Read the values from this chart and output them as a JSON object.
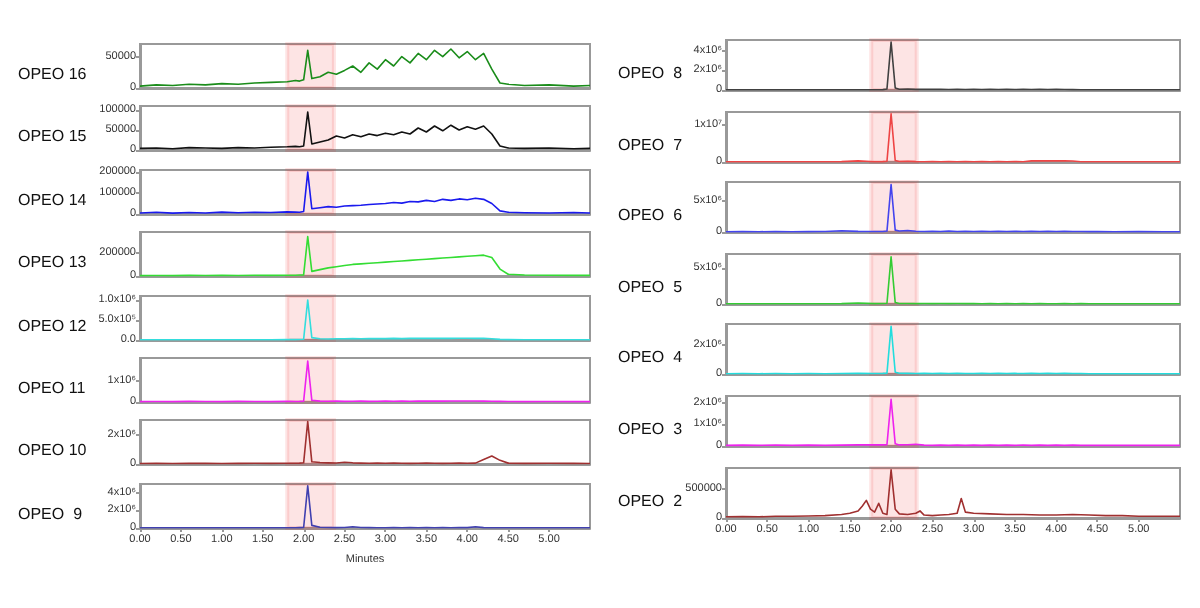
{
  "chart_data": [
    {
      "type": "line",
      "title": "OPEO 16",
      "x": [
        0,
        0.2,
        0.4,
        0.6,
        0.8,
        1.0,
        1.2,
        1.4,
        1.6,
        1.8,
        1.9,
        1.95,
        2.0,
        2.05,
        2.1,
        2.2,
        2.3,
        2.4,
        2.5,
        2.6,
        2.7,
        2.8,
        2.9,
        3.0,
        3.1,
        3.2,
        3.3,
        3.4,
        3.5,
        3.6,
        3.7,
        3.8,
        3.9,
        4.0,
        4.1,
        4.2,
        4.3,
        4.4,
        4.5,
        4.7,
        5.0,
        5.3,
        5.5
      ],
      "xlim": [
        0,
        5.5
      ],
      "ylim": [
        0,
        70000
      ],
      "yticks": [
        0,
        50000
      ],
      "tick_labels": "y",
      "marker": "none",
      "bands": [
        {
          "axis": "x",
          "from": 1.8,
          "to": 2.37,
          "color": "#ee2222"
        }
      ],
      "series": [
        {
          "color": "#1a8c1a",
          "values": [
            3000,
            5000,
            4000,
            6000,
            5000,
            7000,
            6000,
            8000,
            9000,
            10000,
            12000,
            11000,
            13000,
            60000,
            15000,
            18000,
            25000,
            22000,
            28000,
            35000,
            25000,
            40000,
            30000,
            45000,
            35000,
            50000,
            40000,
            55000,
            45000,
            60000,
            50000,
            62000,
            48000,
            58000,
            45000,
            55000,
            30000,
            8000,
            6000,
            4000,
            5000,
            3000,
            4000
          ]
        }
      ]
    },
    {
      "type": "line",
      "title": "OPEO 15",
      "x": [
        0,
        0.2,
        0.4,
        0.6,
        0.8,
        1.0,
        1.2,
        1.4,
        1.6,
        1.8,
        1.9,
        1.95,
        2.0,
        2.05,
        2.1,
        2.2,
        2.3,
        2.4,
        2.5,
        2.6,
        2.7,
        2.8,
        2.9,
        3.0,
        3.1,
        3.2,
        3.3,
        3.4,
        3.5,
        3.6,
        3.7,
        3.8,
        3.9,
        4.0,
        4.1,
        4.2,
        4.3,
        4.4,
        4.5,
        4.7,
        5.0,
        5.3,
        5.5
      ],
      "xlim": [
        0,
        5.5
      ],
      "ylim": [
        0,
        110000
      ],
      "yticks": [
        0,
        50000,
        100000
      ],
      "tick_labels": "y",
      "marker": "none",
      "bands": [
        {
          "axis": "x",
          "from": 1.8,
          "to": 2.37,
          "color": "#ee2222"
        }
      ],
      "series": [
        {
          "color": "#111111",
          "values": [
            4000,
            5000,
            3000,
            6000,
            5000,
            4000,
            6000,
            5000,
            7000,
            8000,
            9000,
            8000,
            10000,
            95000,
            15000,
            20000,
            25000,
            35000,
            30000,
            38000,
            33000,
            40000,
            36000,
            42000,
            38000,
            45000,
            40000,
            55000,
            45000,
            60000,
            48000,
            62000,
            50000,
            58000,
            52000,
            60000,
            40000,
            10000,
            5000,
            4000,
            5000,
            3000,
            4000
          ]
        }
      ]
    },
    {
      "type": "line",
      "title": "OPEO 14",
      "x": [
        0,
        0.2,
        0.4,
        0.6,
        0.8,
        1.0,
        1.2,
        1.4,
        1.6,
        1.8,
        1.9,
        1.95,
        2.0,
        2.05,
        2.1,
        2.2,
        2.3,
        2.4,
        2.5,
        2.6,
        2.7,
        2.8,
        2.9,
        3.0,
        3.1,
        3.2,
        3.3,
        3.4,
        3.5,
        3.6,
        3.7,
        3.8,
        3.9,
        4.0,
        4.1,
        4.2,
        4.3,
        4.4,
        4.5,
        4.7,
        5.0,
        5.3,
        5.5
      ],
      "xlim": [
        0,
        5.5
      ],
      "ylim": [
        0,
        210000
      ],
      "yticks": [
        0,
        100000,
        200000
      ],
      "tick_labels": "y",
      "marker": "none",
      "bands": [
        {
          "axis": "x",
          "from": 1.8,
          "to": 2.37,
          "color": "#ee2222"
        }
      ],
      "series": [
        {
          "color": "#1a1aee",
          "values": [
            5000,
            8000,
            4000,
            7000,
            5000,
            9000,
            6000,
            8000,
            7000,
            10000,
            9000,
            8000,
            12000,
            200000,
            25000,
            30000,
            35000,
            32000,
            38000,
            40000,
            42000,
            45000,
            48000,
            50000,
            55000,
            52000,
            60000,
            58000,
            65000,
            60000,
            70000,
            65000,
            72000,
            68000,
            75000,
            70000,
            50000,
            15000,
            8000,
            6000,
            5000,
            7000,
            5000
          ]
        }
      ]
    },
    {
      "type": "line",
      "title": "OPEO 13",
      "x": [
        0,
        0.2,
        0.4,
        0.6,
        0.8,
        1.0,
        1.2,
        1.4,
        1.6,
        1.8,
        1.9,
        1.95,
        2.0,
        2.05,
        2.1,
        2.2,
        2.3,
        2.4,
        2.5,
        2.6,
        2.7,
        2.8,
        2.9,
        3.0,
        3.1,
        3.2,
        3.3,
        3.4,
        3.5,
        3.6,
        3.7,
        3.8,
        3.9,
        4.0,
        4.1,
        4.2,
        4.3,
        4.4,
        4.5,
        4.7,
        5.0,
        5.3,
        5.5
      ],
      "xlim": [
        0,
        5.5
      ],
      "ylim": [
        0,
        380000
      ],
      "yticks": [
        0,
        200000
      ],
      "tick_labels": "y",
      "marker": "none",
      "bands": [
        {
          "axis": "x",
          "from": 1.8,
          "to": 2.37,
          "color": "#ee2222"
        }
      ],
      "series": [
        {
          "color": "#33dd33",
          "values": [
            3000,
            4000,
            3000,
            5000,
            4000,
            5000,
            4000,
            6000,
            5000,
            7000,
            6000,
            8000,
            10000,
            340000,
            40000,
            55000,
            70000,
            80000,
            90000,
            100000,
            105000,
            110000,
            115000,
            120000,
            125000,
            130000,
            135000,
            140000,
            145000,
            150000,
            155000,
            160000,
            165000,
            170000,
            175000,
            180000,
            160000,
            60000,
            15000,
            8000,
            6000,
            5000,
            5000
          ]
        }
      ]
    },
    {
      "type": "line",
      "title": "OPEO 12",
      "x": [
        0,
        0.2,
        0.4,
        0.6,
        0.8,
        1.0,
        1.2,
        1.4,
        1.6,
        1.8,
        1.9,
        1.95,
        2.0,
        2.05,
        2.1,
        2.2,
        2.3,
        2.4,
        2.5,
        2.6,
        2.7,
        2.8,
        2.9,
        3.0,
        3.1,
        3.2,
        3.3,
        3.4,
        3.5,
        3.6,
        3.7,
        3.8,
        3.9,
        4.0,
        4.1,
        4.2,
        4.3,
        4.4,
        4.5,
        4.7,
        5.0,
        5.3,
        5.5
      ],
      "xlim": [
        0,
        5.5
      ],
      "ylim": [
        0,
        1100000
      ],
      "yticks": [
        {
          "value": 0,
          "label": "0.0"
        },
        {
          "value": 500000,
          "label": "5.0x10⁵"
        },
        {
          "value": 1000000,
          "label": "1.0x10⁶"
        }
      ],
      "tick_labels": "y",
      "marker": "none",
      "bands": [
        {
          "axis": "x",
          "from": 1.8,
          "to": 2.37,
          "color": "#ee2222"
        }
      ],
      "series": [
        {
          "color": "#33dddd",
          "values": [
            5000,
            6000,
            5000,
            7000,
            6000,
            5000,
            7000,
            6000,
            8000,
            9000,
            10000,
            12000,
            20000,
            1000000,
            60000,
            30000,
            25000,
            30000,
            30000,
            35000,
            30000,
            35000,
            35000,
            35000,
            40000,
            35000,
            40000,
            40000,
            45000,
            40000,
            45000,
            40000,
            45000,
            45000,
            40000,
            45000,
            30000,
            15000,
            10000,
            8000,
            7000,
            6000,
            5000
          ]
        }
      ]
    },
    {
      "type": "line",
      "title": "OPEO 11",
      "x": [
        0,
        0.2,
        0.4,
        0.6,
        0.8,
        1.0,
        1.2,
        1.4,
        1.6,
        1.8,
        1.9,
        1.95,
        2.0,
        2.05,
        2.1,
        2.2,
        2.3,
        2.4,
        2.5,
        2.6,
        2.7,
        2.8,
        2.9,
        3.0,
        3.1,
        3.2,
        3.3,
        3.4,
        3.5,
        3.6,
        3.7,
        3.8,
        3.9,
        4.0,
        4.1,
        4.2,
        4.3,
        4.4,
        4.5,
        4.7,
        5.0,
        5.3,
        5.5
      ],
      "xlim": [
        0,
        5.5
      ],
      "ylim": [
        0,
        2100000
      ],
      "yticks": [
        0,
        {
          "value": 1000000,
          "label": "1x10⁶"
        }
      ],
      "tick_labels": "y",
      "marker": "none",
      "bands": [
        {
          "axis": "x",
          "from": 1.8,
          "to": 2.37,
          "color": "#ee2222"
        }
      ],
      "series": [
        {
          "color": "#ee22ee",
          "values": [
            20000,
            25000,
            20000,
            30000,
            25000,
            20000,
            30000,
            25000,
            20000,
            30000,
            25000,
            30000,
            40000,
            1950000,
            80000,
            40000,
            35000,
            40000,
            30000,
            35000,
            40000,
            30000,
            35000,
            40000,
            35000,
            40000,
            35000,
            45000,
            40000,
            45000,
            40000,
            50000,
            45000,
            50000,
            45000,
            40000,
            35000,
            30000,
            25000,
            20000,
            25000,
            20000,
            20000
          ]
        }
      ]
    },
    {
      "type": "line",
      "title": "OPEO 10",
      "x": [
        0,
        0.2,
        0.4,
        0.6,
        0.8,
        1.0,
        1.2,
        1.4,
        1.6,
        1.8,
        1.9,
        1.95,
        2.0,
        2.05,
        2.1,
        2.2,
        2.3,
        2.4,
        2.5,
        2.6,
        2.7,
        2.8,
        2.9,
        3.0,
        3.1,
        3.2,
        3.3,
        3.4,
        3.5,
        3.6,
        3.7,
        3.8,
        3.9,
        4.0,
        4.1,
        4.2,
        4.3,
        4.4,
        4.5,
        4.7,
        5.0,
        5.3,
        5.5
      ],
      "xlim": [
        0,
        5.5
      ],
      "ylim": [
        0,
        3000000
      ],
      "yticks": [
        0,
        {
          "value": 2000000,
          "label": "2x10⁶"
        }
      ],
      "tick_labels": "y",
      "marker": "none",
      "bands": [
        {
          "axis": "x",
          "from": 1.8,
          "to": 2.37,
          "color": "#ee2222"
        }
      ],
      "series": [
        {
          "color": "#a03030",
          "values": [
            30000,
            40000,
            30000,
            50000,
            40000,
            30000,
            40000,
            50000,
            40000,
            50000,
            50000,
            60000,
            80000,
            2900000,
            150000,
            100000,
            80000,
            70000,
            120000,
            80000,
            60000,
            50000,
            60000,
            50000,
            60000,
            50000,
            40000,
            50000,
            60000,
            50000,
            40000,
            50000,
            60000,
            50000,
            60000,
            300000,
            550000,
            250000,
            60000,
            40000,
            50000,
            40000,
            30000
          ]
        }
      ]
    },
    {
      "type": "line",
      "title": "OPEO  9",
      "x": [
        0,
        0.2,
        0.4,
        0.6,
        0.8,
        1.0,
        1.2,
        1.4,
        1.6,
        1.8,
        1.9,
        1.95,
        2.0,
        2.05,
        2.1,
        2.2,
        2.3,
        2.4,
        2.5,
        2.6,
        2.7,
        2.8,
        2.9,
        3.0,
        3.1,
        3.2,
        3.3,
        3.4,
        3.5,
        3.6,
        3.7,
        3.8,
        3.9,
        4.0,
        4.1,
        4.2,
        4.3,
        4.4,
        4.5,
        4.7,
        5.0,
        5.3,
        5.5
      ],
      "xlim": [
        0,
        5.5
      ],
      "xlabel": "Minutes",
      "ylim": [
        0,
        5000000
      ],
      "yticks": [
        0,
        {
          "value": 2000000,
          "label": "2x10⁶"
        },
        {
          "value": 4000000,
          "label": "4x10⁶"
        }
      ],
      "xticks": [
        {
          "value": 0,
          "label": "0.00"
        },
        {
          "value": 0.5,
          "label": "0.50"
        },
        {
          "value": 1,
          "label": "1.00"
        },
        {
          "value": 1.5,
          "label": "1.50"
        },
        {
          "value": 2,
          "label": "2.00"
        },
        {
          "value": 2.5,
          "label": "2.50"
        },
        {
          "value": 3,
          "label": "3.00"
        },
        {
          "value": 3.5,
          "label": "3.50"
        },
        {
          "value": 4,
          "label": "4.00"
        },
        {
          "value": 4.5,
          "label": "4.50"
        },
        {
          "value": 5,
          "label": "5.00"
        }
      ],
      "marker": "none",
      "bands": [
        {
          "axis": "x",
          "from": 1.8,
          "to": 2.37,
          "color": "#ee2222"
        }
      ],
      "series": [
        {
          "color": "#4040b0",
          "values": [
            20000,
            30000,
            20000,
            30000,
            20000,
            30000,
            20000,
            30000,
            20000,
            30000,
            30000,
            40000,
            60000,
            4800000,
            300000,
            80000,
            50000,
            40000,
            60000,
            150000,
            50000,
            40000,
            30000,
            30000,
            40000,
            30000,
            40000,
            30000,
            40000,
            30000,
            40000,
            30000,
            40000,
            40000,
            150000,
            40000,
            30000,
            30000,
            20000,
            20000,
            30000,
            20000,
            20000
          ]
        }
      ]
    },
    {
      "type": "line",
      "title": "OPEO  8",
      "x": [
        0,
        0.2,
        0.4,
        0.6,
        0.8,
        1.0,
        1.2,
        1.4,
        1.6,
        1.8,
        1.9,
        1.95,
        2.0,
        2.05,
        2.1,
        2.2,
        2.3,
        2.4,
        2.5,
        2.6,
        2.7,
        2.8,
        2.9,
        3.0,
        3.1,
        3.2,
        3.3,
        3.4,
        3.5,
        3.6,
        3.7,
        3.8,
        3.9,
        4.0,
        4.1,
        4.2,
        4.3,
        4.4,
        4.5,
        4.7,
        5.0,
        5.3,
        5.5
      ],
      "xlim": [
        0,
        5.5
      ],
      "ylim": [
        0,
        5100000
      ],
      "yticks": [
        0,
        {
          "value": 2000000,
          "label": "2x10⁶"
        },
        {
          "value": 4000000,
          "label": "4x10⁶"
        }
      ],
      "tick_labels": "y",
      "marker": "none",
      "bands": [
        {
          "axis": "x",
          "from": 1.76,
          "to": 2.31,
          "color": "#ee2222"
        }
      ],
      "series": [
        {
          "color": "#404040",
          "values": [
            20000,
            20000,
            20000,
            20000,
            20000,
            20000,
            20000,
            20000,
            20000,
            30000,
            40000,
            100000,
            4900000,
            200000,
            80000,
            100000,
            60000,
            80000,
            60000,
            70000,
            50000,
            60000,
            50000,
            60000,
            50000,
            60000,
            50000,
            60000,
            50000,
            60000,
            50000,
            60000,
            50000,
            60000,
            50000,
            40000,
            30000,
            20000,
            20000,
            20000,
            20000,
            20000,
            20000
          ]
        }
      ]
    },
    {
      "type": "line",
      "title": "OPEO  7",
      "x": [
        0,
        0.2,
        0.4,
        0.6,
        0.8,
        1.0,
        1.2,
        1.4,
        1.6,
        1.8,
        1.9,
        1.95,
        2.0,
        2.05,
        2.1,
        2.2,
        2.3,
        2.4,
        2.5,
        2.6,
        2.7,
        2.8,
        2.9,
        3.0,
        3.1,
        3.2,
        3.3,
        3.4,
        3.5,
        3.6,
        3.7,
        3.8,
        3.9,
        4.0,
        4.1,
        4.2,
        4.3,
        4.4,
        4.5,
        4.7,
        5.0,
        5.3,
        5.5
      ],
      "xlim": [
        0,
        5.5
      ],
      "ylim": [
        0,
        13500000
      ],
      "yticks": [
        0,
        {
          "value": 10000000,
          "label": "1x10⁷"
        }
      ],
      "tick_labels": "y",
      "marker": "none",
      "bands": [
        {
          "axis": "x",
          "from": 1.76,
          "to": 2.31,
          "color": "#ee2222"
        }
      ],
      "series": [
        {
          "color": "#ee4444",
          "values": [
            50000,
            60000,
            50000,
            60000,
            50000,
            60000,
            50000,
            100000,
            300000,
            80000,
            100000,
            200000,
            13000000,
            400000,
            150000,
            200000,
            100000,
            80000,
            100000,
            80000,
            100000,
            80000,
            100000,
            80000,
            100000,
            80000,
            100000,
            80000,
            100000,
            80000,
            300000,
            300000,
            350000,
            300000,
            300000,
            250000,
            80000,
            60000,
            50000,
            50000,
            60000,
            50000,
            50000
          ]
        }
      ]
    },
    {
      "type": "line",
      "title": "OPEO  6",
      "x": [
        0,
        0.2,
        0.4,
        0.6,
        0.8,
        1.0,
        1.2,
        1.4,
        1.6,
        1.8,
        1.9,
        1.95,
        2.0,
        2.05,
        2.1,
        2.2,
        2.3,
        2.4,
        2.5,
        2.6,
        2.7,
        2.8,
        2.9,
        3.0,
        3.1,
        3.2,
        3.3,
        3.4,
        3.5,
        3.6,
        3.7,
        3.8,
        3.9,
        4.0,
        4.1,
        4.2,
        4.3,
        4.4,
        4.5,
        4.7,
        5.0,
        5.3,
        5.5
      ],
      "xlim": [
        0,
        5.5
      ],
      "ylim": [
        0,
        8000000
      ],
      "yticks": [
        0,
        {
          "value": 5000000,
          "label": "5x10⁶"
        }
      ],
      "tick_labels": "y",
      "marker": "none",
      "bands": [
        {
          "axis": "x",
          "from": 1.76,
          "to": 2.31,
          "color": "#ee2222"
        }
      ],
      "series": [
        {
          "color": "#4444ee",
          "values": [
            50000,
            60000,
            50000,
            60000,
            50000,
            60000,
            80000,
            200000,
            100000,
            80000,
            80000,
            150000,
            7600000,
            300000,
            150000,
            250000,
            120000,
            80000,
            100000,
            80000,
            150000,
            80000,
            100000,
            80000,
            100000,
            80000,
            100000,
            80000,
            100000,
            80000,
            100000,
            80000,
            100000,
            80000,
            100000,
            80000,
            80000,
            60000,
            60000,
            50000,
            60000,
            50000,
            50000
          ]
        }
      ]
    },
    {
      "type": "line",
      "title": "OPEO  5",
      "x": [
        0,
        0.2,
        0.4,
        0.6,
        0.8,
        1.0,
        1.2,
        1.4,
        1.6,
        1.8,
        1.9,
        1.95,
        2.0,
        2.05,
        2.1,
        2.2,
        2.3,
        2.4,
        2.5,
        2.6,
        2.7,
        2.8,
        2.9,
        3.0,
        3.1,
        3.2,
        3.3,
        3.4,
        3.5,
        3.6,
        3.7,
        3.8,
        3.9,
        4.0,
        4.1,
        4.2,
        4.3,
        4.4,
        4.5,
        4.7,
        5.0,
        5.3,
        5.5
      ],
      "xlim": [
        0,
        5.5
      ],
      "ylim": [
        0,
        7000000
      ],
      "yticks": [
        0,
        {
          "value": 5000000,
          "label": "5x10⁶"
        }
      ],
      "tick_labels": "y",
      "marker": "none",
      "bands": [
        {
          "axis": "x",
          "from": 1.76,
          "to": 2.31,
          "color": "#ee2222"
        }
      ],
      "series": [
        {
          "color": "#33cc33",
          "values": [
            30000,
            40000,
            30000,
            40000,
            30000,
            40000,
            30000,
            50000,
            150000,
            50000,
            60000,
            100000,
            6600000,
            200000,
            80000,
            60000,
            50000,
            60000,
            50000,
            60000,
            50000,
            60000,
            50000,
            50000,
            40000,
            50000,
            40000,
            50000,
            40000,
            50000,
            40000,
            50000,
            40000,
            40000,
            50000,
            40000,
            50000,
            40000,
            30000,
            30000,
            30000,
            30000,
            30000
          ]
        }
      ]
    },
    {
      "type": "line",
      "title": "OPEO  4",
      "x": [
        0,
        0.2,
        0.4,
        0.6,
        0.8,
        1.0,
        1.2,
        1.4,
        1.6,
        1.8,
        1.9,
        1.95,
        2.0,
        2.05,
        2.1,
        2.2,
        2.3,
        2.4,
        2.5,
        2.6,
        2.7,
        2.8,
        2.9,
        3.0,
        3.1,
        3.2,
        3.3,
        3.4,
        3.5,
        3.6,
        3.7,
        3.8,
        3.9,
        4.0,
        4.1,
        4.2,
        4.3,
        4.4,
        4.5,
        4.7,
        5.0,
        5.3,
        5.5
      ],
      "xlim": [
        0,
        5.5
      ],
      "ylim": [
        0,
        3400000
      ],
      "yticks": [
        0,
        {
          "value": 2000000,
          "label": "2x10⁶"
        }
      ],
      "tick_labels": "y",
      "marker": "none",
      "bands": [
        {
          "axis": "x",
          "from": 1.76,
          "to": 2.31,
          "color": "#ee2222"
        }
      ],
      "series": [
        {
          "color": "#22dddd",
          "values": [
            20000,
            30000,
            20000,
            30000,
            20000,
            30000,
            20000,
            30000,
            40000,
            30000,
            40000,
            60000,
            3250000,
            120000,
            50000,
            40000,
            30000,
            40000,
            30000,
            40000,
            30000,
            40000,
            30000,
            30000,
            40000,
            30000,
            40000,
            30000,
            40000,
            30000,
            40000,
            30000,
            40000,
            30000,
            40000,
            30000,
            30000,
            20000,
            20000,
            20000,
            20000,
            20000,
            20000
          ]
        }
      ]
    },
    {
      "type": "line",
      "title": "OPEO  3",
      "x": [
        0,
        0.2,
        0.4,
        0.6,
        0.8,
        1.0,
        1.2,
        1.4,
        1.6,
        1.8,
        1.9,
        1.95,
        2.0,
        2.05,
        2.1,
        2.2,
        2.3,
        2.4,
        2.5,
        2.6,
        2.7,
        2.8,
        2.9,
        3.0,
        3.1,
        3.2,
        3.3,
        3.4,
        3.5,
        3.6,
        3.7,
        3.8,
        3.9,
        4.0,
        4.1,
        4.2,
        4.3,
        4.4,
        4.5,
        4.7,
        5.0,
        5.3,
        5.5
      ],
      "xlim": [
        0,
        5.5
      ],
      "ylim": [
        0,
        2300000
      ],
      "yticks": [
        0,
        {
          "value": 1000000,
          "label": "1x10⁶"
        },
        {
          "value": 2000000,
          "label": "2x10⁶"
        }
      ],
      "tick_labels": "y",
      "marker": "none",
      "bands": [
        {
          "axis": "x",
          "from": 1.76,
          "to": 2.31,
          "color": "#ee2222"
        }
      ],
      "series": [
        {
          "color": "#ee22ee",
          "values": [
            30000,
            40000,
            30000,
            40000,
            30000,
            40000,
            30000,
            40000,
            50000,
            60000,
            50000,
            60000,
            2150000,
            100000,
            50000,
            60000,
            80000,
            40000,
            30000,
            40000,
            30000,
            40000,
            30000,
            40000,
            30000,
            40000,
            30000,
            40000,
            30000,
            40000,
            30000,
            40000,
            30000,
            40000,
            30000,
            40000,
            30000,
            30000,
            30000,
            30000,
            30000,
            30000,
            30000
          ]
        }
      ]
    },
    {
      "type": "line",
      "title": "OPEO  2",
      "x": [
        0,
        0.2,
        0.4,
        0.6,
        0.8,
        1.0,
        1.2,
        1.4,
        1.5,
        1.6,
        1.65,
        1.7,
        1.75,
        1.8,
        1.85,
        1.9,
        1.95,
        2.0,
        2.05,
        2.1,
        2.2,
        2.3,
        2.35,
        2.4,
        2.5,
        2.6,
        2.7,
        2.8,
        2.85,
        2.9,
        3.0,
        3.2,
        3.4,
        3.6,
        3.8,
        4.0,
        4.2,
        4.4,
        4.6,
        4.8,
        5.0,
        5.2,
        5.5
      ],
      "xlim": [
        0,
        5.5
      ],
      "ylim": [
        0,
        850000
      ],
      "yticks": [
        0,
        500000
      ],
      "xticks": [
        {
          "value": 0,
          "label": "0.00"
        },
        {
          "value": 0.5,
          "label": "0.50"
        },
        {
          "value": 1,
          "label": "1.00"
        },
        {
          "value": 1.5,
          "label": "1.50"
        },
        {
          "value": 2,
          "label": "2.00"
        },
        {
          "value": 2.5,
          "label": "2.50"
        },
        {
          "value": 3,
          "label": "3.00"
        },
        {
          "value": 3.5,
          "label": "3.50"
        },
        {
          "value": 4,
          "label": "4.00"
        },
        {
          "value": 4.5,
          "label": "4.50"
        },
        {
          "value": 5,
          "label": "5.00"
        }
      ],
      "marker": "none",
      "bands": [
        {
          "axis": "x",
          "from": 1.76,
          "to": 2.31,
          "color": "#ee2222"
        }
      ],
      "series": [
        {
          "color": "#a03030",
          "values": [
            20000,
            25000,
            20000,
            30000,
            30000,
            35000,
            40000,
            60000,
            80000,
            120000,
            200000,
            300000,
            150000,
            100000,
            250000,
            80000,
            60000,
            820000,
            150000,
            70000,
            60000,
            80000,
            120000,
            50000,
            40000,
            50000,
            60000,
            80000,
            330000,
            100000,
            80000,
            70000,
            60000,
            60000,
            50000,
            50000,
            60000,
            50000,
            40000,
            40000,
            30000,
            30000,
            30000
          ]
        }
      ]
    }
  ]
}
